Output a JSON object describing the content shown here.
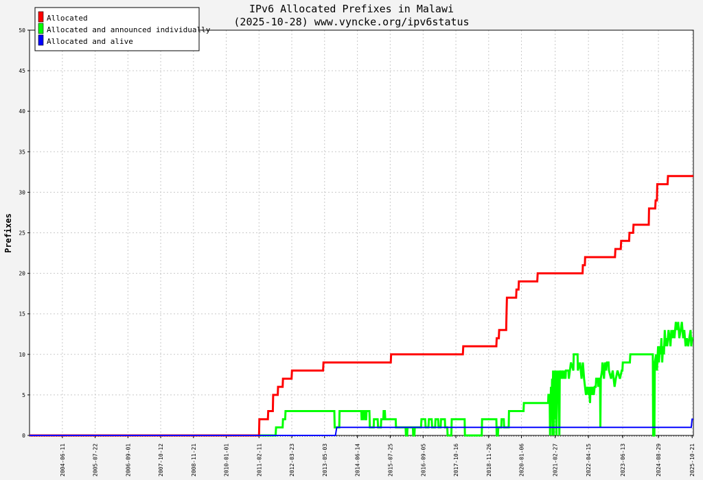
{
  "chart_data": {
    "type": "line",
    "title": "IPv6 Allocated Prefixes in Malawi",
    "subtitle": "(2025-10-28) www.vyncke.org/ipv6status",
    "ylabel": "Prefixes",
    "ylim": [
      0,
      50
    ],
    "yticks": [
      0,
      5,
      10,
      15,
      20,
      25,
      30,
      35,
      40,
      45,
      50
    ],
    "xlim": [
      "2003-05-01",
      "2025-11-05"
    ],
    "xticks": [
      "2004-06-11",
      "2005-07-22",
      "2006-09-01",
      "2007-10-12",
      "2008-11-21",
      "2010-01-01",
      "2011-02-11",
      "2012-03-23",
      "2013-05-03",
      "2014-06-14",
      "2015-07-25",
      "2016-09-05",
      "2017-10-16",
      "2018-11-26",
      "2020-01-06",
      "2021-02-27",
      "2022-04-15",
      "2023-06-13",
      "2024-08-29",
      "2025-10-21"
    ],
    "grid": true,
    "legend_position": "top-left",
    "series": [
      {
        "name": "Allocated",
        "color": "#ff0000",
        "points": [
          [
            "2003-05-01",
            0
          ],
          [
            "2011-02-11",
            0
          ],
          [
            "2011-02-15",
            2
          ],
          [
            "2011-06-01",
            2
          ],
          [
            "2011-06-05",
            3
          ],
          [
            "2011-08-01",
            3
          ],
          [
            "2011-08-05",
            5
          ],
          [
            "2011-10-01",
            5
          ],
          [
            "2011-10-05",
            6
          ],
          [
            "2011-12-01",
            6
          ],
          [
            "2011-12-05",
            7
          ],
          [
            "2012-03-20",
            7
          ],
          [
            "2012-03-25",
            8
          ],
          [
            "2013-04-15",
            8
          ],
          [
            "2013-04-20",
            9
          ],
          [
            "2015-08-01",
            9
          ],
          [
            "2015-08-05",
            10
          ],
          [
            "2018-01-10",
            10
          ],
          [
            "2018-01-15",
            11
          ],
          [
            "2019-03-01",
            11
          ],
          [
            "2019-03-05",
            12
          ],
          [
            "2019-04-01",
            12
          ],
          [
            "2019-04-05",
            13
          ],
          [
            "2019-07-01",
            13
          ],
          [
            "2019-07-05",
            15
          ],
          [
            "2019-07-10",
            17
          ],
          [
            "2019-11-01",
            17
          ],
          [
            "2019-11-05",
            18
          ],
          [
            "2019-12-01",
            18
          ],
          [
            "2019-12-05",
            19
          ],
          [
            "2020-07-20",
            19
          ],
          [
            "2020-07-25",
            20
          ],
          [
            "2022-02-01",
            20
          ],
          [
            "2022-02-05",
            21
          ],
          [
            "2022-03-01",
            21
          ],
          [
            "2022-03-05",
            22
          ],
          [
            "2023-03-10",
            22
          ],
          [
            "2023-03-15",
            23
          ],
          [
            "2023-05-20",
            23
          ],
          [
            "2023-05-25",
            24
          ],
          [
            "2023-09-01",
            24
          ],
          [
            "2023-09-05",
            25
          ],
          [
            "2023-10-20",
            25
          ],
          [
            "2023-10-25",
            26
          ],
          [
            "2024-05-01",
            26
          ],
          [
            "2024-05-05",
            28
          ],
          [
            "2024-07-20",
            28
          ],
          [
            "2024-07-25",
            29
          ],
          [
            "2024-08-10",
            29
          ],
          [
            "2024-08-15",
            31
          ],
          [
            "2024-12-20",
            31
          ],
          [
            "2024-12-25",
            32
          ],
          [
            "2025-11-05",
            32
          ]
        ]
      },
      {
        "name": "Allocated and announced individually",
        "color": "#00ff00",
        "points": [
          [
            "2003-05-01",
            0
          ],
          [
            "2011-09-05",
            0
          ],
          [
            "2011-09-10",
            1
          ],
          [
            "2011-12-01",
            1
          ],
          [
            "2011-12-05",
            2
          ],
          [
            "2012-01-01",
            2
          ],
          [
            "2012-01-05",
            3
          ],
          [
            "2013-09-01",
            3
          ],
          [
            "2013-09-05",
            1
          ],
          [
            "2013-11-01",
            1
          ],
          [
            "2013-11-05",
            3
          ],
          [
            "2014-08-01",
            3
          ],
          [
            "2014-08-05",
            2
          ],
          [
            "2014-08-20",
            2
          ],
          [
            "2014-08-25",
            3
          ],
          [
            "2014-09-10",
            3
          ],
          [
            "2014-09-15",
            2
          ],
          [
            "2014-10-01",
            2
          ],
          [
            "2014-10-05",
            3
          ],
          [
            "2014-11-10",
            3
          ],
          [
            "2014-11-15",
            1
          ],
          [
            "2015-01-01",
            1
          ],
          [
            "2015-01-05",
            2
          ],
          [
            "2015-02-20",
            2
          ],
          [
            "2015-02-25",
            1
          ],
          [
            "2015-04-01",
            1
          ],
          [
            "2015-04-05",
            2
          ],
          [
            "2015-05-01",
            2
          ],
          [
            "2015-05-05",
            3
          ],
          [
            "2015-05-20",
            3
          ],
          [
            "2015-05-25",
            2
          ],
          [
            "2015-10-01",
            2
          ],
          [
            "2015-10-05",
            1
          ],
          [
            "2016-02-01",
            1
          ],
          [
            "2016-02-05",
            0
          ],
          [
            "2016-02-20",
            0
          ],
          [
            "2016-02-25",
            1
          ],
          [
            "2016-05-01",
            1
          ],
          [
            "2016-05-05",
            0
          ],
          [
            "2016-05-20",
            0
          ],
          [
            "2016-05-25",
            1
          ],
          [
            "2016-08-10",
            1
          ],
          [
            "2016-08-15",
            2
          ],
          [
            "2016-10-01",
            2
          ],
          [
            "2016-10-05",
            1
          ],
          [
            "2016-11-10",
            1
          ],
          [
            "2016-11-15",
            2
          ],
          [
            "2016-12-20",
            2
          ],
          [
            "2016-12-25",
            1
          ],
          [
            "2017-02-01",
            1
          ],
          [
            "2017-02-05",
            2
          ],
          [
            "2017-03-10",
            2
          ],
          [
            "2017-03-15",
            1
          ],
          [
            "2017-04-10",
            1
          ],
          [
            "2017-04-15",
            2
          ],
          [
            "2017-06-01",
            2
          ],
          [
            "2017-06-05",
            1
          ],
          [
            "2017-07-01",
            1
          ],
          [
            "2017-07-05",
            0
          ],
          [
            "2017-08-20",
            0
          ],
          [
            "2017-08-25",
            2
          ],
          [
            "2018-02-01",
            2
          ],
          [
            "2018-02-05",
            0
          ],
          [
            "2018-09-01",
            0
          ],
          [
            "2018-09-05",
            2
          ],
          [
            "2019-03-01",
            2
          ],
          [
            "2019-03-05",
            0
          ],
          [
            "2019-03-20",
            0
          ],
          [
            "2019-03-25",
            1
          ],
          [
            "2019-05-01",
            1
          ],
          [
            "2019-05-05",
            2
          ],
          [
            "2019-06-01",
            2
          ],
          [
            "2019-06-05",
            1
          ],
          [
            "2019-08-01",
            1
          ],
          [
            "2019-08-05",
            3
          ],
          [
            "2020-02-01",
            3
          ],
          [
            "2020-02-05",
            4
          ],
          [
            "2020-12-01",
            4
          ],
          [
            "2020-12-05",
            5
          ],
          [
            "2020-12-20",
            5
          ],
          [
            "2020-12-25",
            0
          ],
          [
            "2021-01-05",
            6
          ],
          [
            "2021-01-10",
            3
          ],
          [
            "2021-01-20",
            7
          ],
          [
            "2021-01-25",
            0
          ],
          [
            "2021-02-01",
            8
          ],
          [
            "2021-02-10",
            0
          ],
          [
            "2021-02-15",
            8
          ],
          [
            "2021-02-25",
            2
          ],
          [
            "2021-03-05",
            8
          ],
          [
            "2021-03-15",
            0
          ],
          [
            "2021-03-20",
            8
          ],
          [
            "2021-04-01",
            4
          ],
          [
            "2021-04-05",
            8
          ],
          [
            "2021-04-20",
            0
          ],
          [
            "2021-04-25",
            8
          ],
          [
            "2021-05-15",
            7
          ],
          [
            "2021-05-20",
            8
          ],
          [
            "2021-06-10",
            7
          ],
          [
            "2021-06-15",
            8
          ],
          [
            "2021-07-05",
            7
          ],
          [
            "2021-07-10",
            8
          ],
          [
            "2021-08-10",
            8
          ],
          [
            "2021-08-15",
            7
          ],
          [
            "2021-09-10",
            9
          ],
          [
            "2021-10-10",
            8
          ],
          [
            "2021-10-15",
            10
          ],
          [
            "2021-12-01",
            10
          ],
          [
            "2021-12-05",
            8
          ],
          [
            "2022-01-01",
            9
          ],
          [
            "2022-01-20",
            7
          ],
          [
            "2022-02-05",
            9
          ],
          [
            "2022-02-20",
            7
          ],
          [
            "2022-03-15",
            5
          ],
          [
            "2022-04-01",
            6
          ],
          [
            "2022-04-15",
            5
          ],
          [
            "2022-04-20",
            6
          ],
          [
            "2022-05-05",
            4
          ],
          [
            "2022-05-10",
            6
          ],
          [
            "2022-05-25",
            5
          ],
          [
            "2022-06-05",
            6
          ],
          [
            "2022-06-20",
            5
          ],
          [
            "2022-07-01",
            6
          ],
          [
            "2022-07-15",
            6
          ],
          [
            "2022-07-20",
            7
          ],
          [
            "2022-08-10",
            7
          ],
          [
            "2022-08-15",
            6
          ],
          [
            "2022-08-30",
            7
          ],
          [
            "2022-09-05",
            7
          ],
          [
            "2022-09-10",
            1
          ],
          [
            "2022-09-15",
            7
          ],
          [
            "2022-09-30",
            8
          ],
          [
            "2022-10-05",
            9
          ],
          [
            "2022-10-25",
            7
          ],
          [
            "2022-11-05",
            9
          ],
          [
            "2022-11-20",
            8
          ],
          [
            "2022-11-30",
            9
          ],
          [
            "2022-12-20",
            9
          ],
          [
            "2022-12-25",
            8
          ],
          [
            "2023-01-20",
            7
          ],
          [
            "2023-02-10",
            8
          ],
          [
            "2023-03-05",
            6
          ],
          [
            "2023-03-20",
            7
          ],
          [
            "2023-04-10",
            8
          ],
          [
            "2023-05-10",
            7
          ],
          [
            "2023-06-01",
            8
          ],
          [
            "2023-06-10",
            8
          ],
          [
            "2023-06-15",
            9
          ],
          [
            "2023-09-10",
            9
          ],
          [
            "2023-09-15",
            10
          ],
          [
            "2024-01-10",
            10
          ],
          [
            "2024-01-15",
            10
          ],
          [
            "2024-06-20",
            10
          ],
          [
            "2024-06-25",
            0
          ],
          [
            "2024-07-10",
            0
          ],
          [
            "2024-07-15",
            9
          ],
          [
            "2024-08-01",
            10
          ],
          [
            "2024-08-10",
            8
          ],
          [
            "2024-08-25",
            11
          ],
          [
            "2024-09-05",
            9
          ],
          [
            "2024-09-15",
            11
          ],
          [
            "2024-09-25",
            10
          ],
          [
            "2024-10-05",
            12
          ],
          [
            "2024-10-15",
            9
          ],
          [
            "2024-10-25",
            11
          ],
          [
            "2024-11-05",
            10
          ],
          [
            "2024-11-15",
            13
          ],
          [
            "2024-11-25",
            11
          ],
          [
            "2024-12-05",
            12
          ],
          [
            "2024-12-15",
            11
          ],
          [
            "2025-01-01",
            13
          ],
          [
            "2025-01-15",
            12
          ],
          [
            "2025-01-25",
            11
          ],
          [
            "2025-02-05",
            13
          ],
          [
            "2025-02-15",
            12
          ],
          [
            "2025-03-01",
            13
          ],
          [
            "2025-03-15",
            12
          ],
          [
            "2025-04-01",
            14
          ],
          [
            "2025-04-15",
            13
          ],
          [
            "2025-05-01",
            14
          ],
          [
            "2025-05-15",
            12
          ],
          [
            "2025-06-01",
            13
          ],
          [
            "2025-06-15",
            14
          ],
          [
            "2025-07-01",
            12
          ],
          [
            "2025-07-15",
            13
          ],
          [
            "2025-08-01",
            11
          ],
          [
            "2025-08-15",
            12
          ],
          [
            "2025-09-01",
            11
          ],
          [
            "2025-09-15",
            12
          ],
          [
            "2025-10-01",
            13
          ],
          [
            "2025-10-10",
            11
          ],
          [
            "2025-10-20",
            12
          ],
          [
            "2025-11-05",
            12
          ]
        ]
      },
      {
        "name": "Allocated and alive",
        "color": "#0000ff",
        "points": [
          [
            "2003-05-01",
            0
          ],
          [
            "2013-09-15",
            0
          ],
          [
            "2013-10-01",
            1
          ],
          [
            "2025-10-10",
            1
          ],
          [
            "2025-10-20",
            2
          ],
          [
            "2025-11-05",
            2
          ]
        ]
      }
    ]
  }
}
